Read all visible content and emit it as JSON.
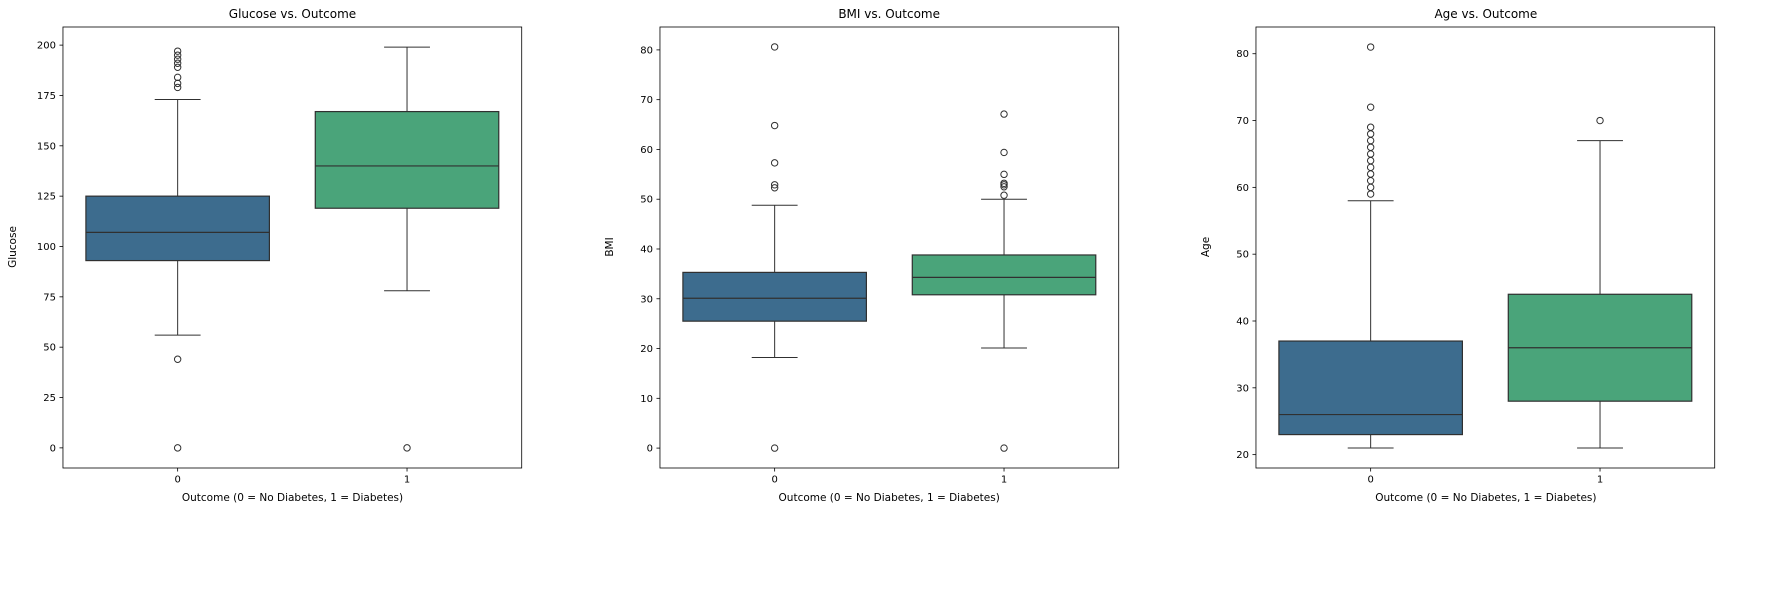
{
  "styles": {
    "background": "#ffffff",
    "edge_color": "#303030",
    "axis_color": "#000000",
    "box_colors": [
      "#3d6c8e",
      "#4aa47a"
    ]
  },
  "chart_data": [
    {
      "type": "box",
      "title": "Glucose vs. Outcome",
      "xlabel": "Outcome (0 = No Diabetes, 1 = Diabetes)",
      "ylabel": "Glucose",
      "categories": [
        "0",
        "1"
      ],
      "ylim": [
        -10,
        209
      ],
      "yticks": [
        0,
        25,
        50,
        75,
        100,
        125,
        150,
        175,
        200
      ],
      "grid": false,
      "legend": false,
      "series": [
        {
          "category": "0",
          "color": "#3d6c8e",
          "q1": 93,
          "median": 107,
          "q3": 125,
          "whisker_low": 56,
          "whisker_high": 173,
          "outliers": [
            0,
            44,
            179,
            181,
            184,
            189,
            191,
            193,
            195,
            197
          ]
        },
        {
          "category": "1",
          "color": "#4aa47a",
          "q1": 119,
          "median": 140,
          "q3": 167,
          "whisker_low": 78,
          "whisker_high": 199,
          "outliers": [
            0
          ]
        }
      ]
    },
    {
      "type": "box",
      "title": "BMI vs. Outcome",
      "xlabel": "Outcome (0 = No Diabetes, 1 = Diabetes)",
      "ylabel": "BMI",
      "categories": [
        "0",
        "1"
      ],
      "ylim": [
        -4,
        84.6
      ],
      "yticks": [
        0,
        10,
        20,
        30,
        40,
        50,
        60,
        70,
        80
      ],
      "grid": false,
      "legend": false,
      "series": [
        {
          "category": "0",
          "color": "#3d6c8e",
          "q1": 25.5,
          "median": 30.1,
          "q3": 35.3,
          "whisker_low": 18.2,
          "whisker_high": 48.8,
          "outliers": [
            0,
            52.3,
            52.9,
            57.3,
            64.8,
            80.6
          ]
        },
        {
          "category": "1",
          "color": "#4aa47a",
          "q1": 30.8,
          "median": 34.3,
          "q3": 38.8,
          "whisker_low": 20.1,
          "whisker_high": 50.0,
          "outliers": [
            0,
            50.8,
            52.5,
            52.9,
            53.2,
            55.0,
            59.4,
            67.1
          ]
        }
      ]
    },
    {
      "type": "box",
      "title": "Age vs. Outcome",
      "xlabel": "Outcome (0 = No Diabetes, 1 = Diabetes)",
      "ylabel": "Age",
      "categories": [
        "0",
        "1"
      ],
      "ylim": [
        18,
        84
      ],
      "yticks": [
        20,
        30,
        40,
        50,
        60,
        70,
        80
      ],
      "grid": false,
      "legend": false,
      "series": [
        {
          "category": "0",
          "color": "#3d6c8e",
          "q1": 23,
          "median": 26,
          "q3": 37,
          "whisker_low": 21,
          "whisker_high": 58,
          "outliers": [
            59,
            60,
            61,
            62,
            63,
            64,
            65,
            66,
            67,
            68,
            69,
            72,
            81
          ]
        },
        {
          "category": "1",
          "color": "#4aa47a",
          "q1": 28,
          "median": 36,
          "q3": 44,
          "whisker_low": 21,
          "whisker_high": 67,
          "outliers": [
            70
          ]
        }
      ]
    }
  ]
}
